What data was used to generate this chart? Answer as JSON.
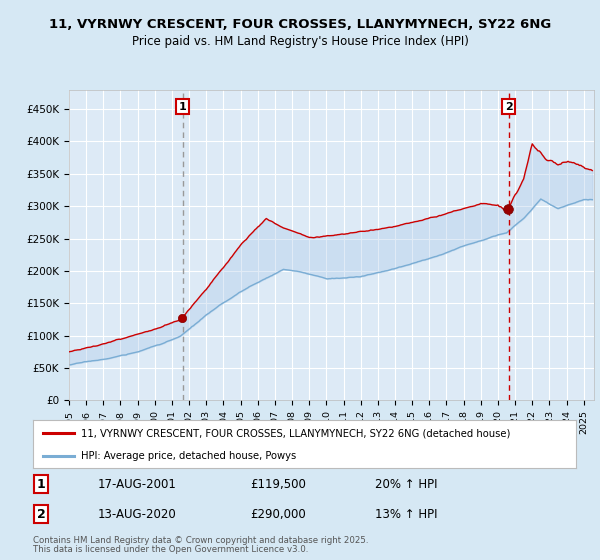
{
  "title_line1": "11, VYRNWY CRESCENT, FOUR CROSSES, LLANYMYNECH, SY22 6NG",
  "title_line2": "Price paid vs. HM Land Registry's House Price Index (HPI)",
  "legend_red": "11, VYRNWY CRESCENT, FOUR CROSSES, LLANYMYNECH, SY22 6NG (detached house)",
  "legend_blue": "HPI: Average price, detached house, Powys",
  "transaction1_date": "17-AUG-2001",
  "transaction1_price": "£119,500",
  "transaction1_hpi": "20% ↑ HPI",
  "transaction2_date": "13-AUG-2020",
  "transaction2_price": "£290,000",
  "transaction2_hpi": "13% ↑ HPI",
  "footer": "Contains HM Land Registry data © Crown copyright and database right 2025.\nThis data is licensed under the Open Government Licence v3.0.",
  "bg_color": "#d6e8f4",
  "plot_bg_color": "#ddeaf6",
  "grid_color": "#ffffff",
  "red_color": "#cc0000",
  "blue_color": "#7aadd4",
  "fill_color": "#aac8e8",
  "vline1_color": "#999999",
  "vline2_color": "#cc0000",
  "ylim": [
    0,
    480000
  ],
  "yticks": [
    0,
    50000,
    100000,
    150000,
    200000,
    250000,
    300000,
    350000,
    400000,
    450000
  ],
  "ytick_labels": [
    "£0",
    "£50K",
    "£100K",
    "£150K",
    "£200K",
    "£250K",
    "£300K",
    "£350K",
    "£400K",
    "£450K"
  ],
  "transaction1_year": 2001.625,
  "transaction2_year": 2020.625
}
